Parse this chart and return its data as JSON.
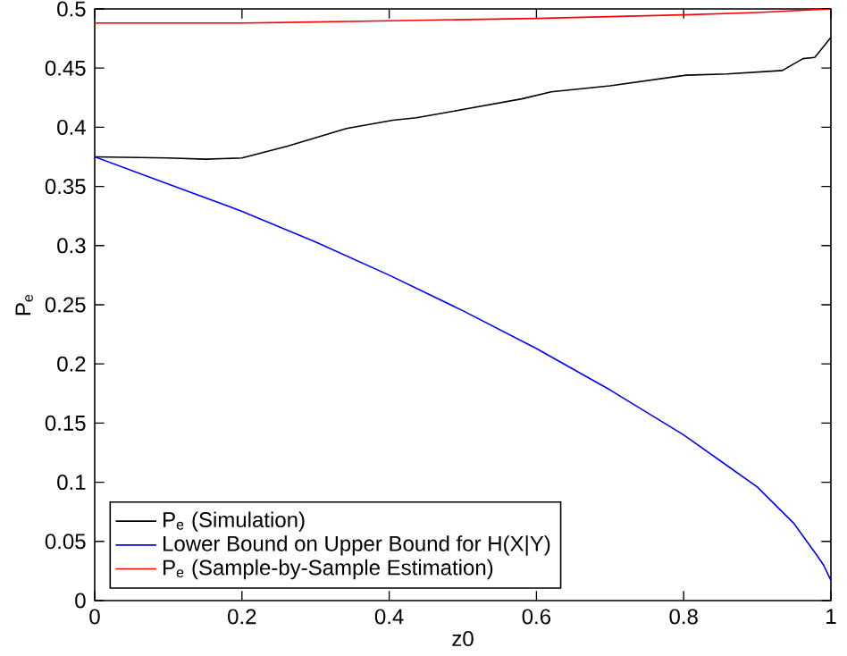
{
  "chart_data": {
    "type": "line",
    "xlabel": "z0",
    "ylabel": "P$_{e}$",
    "xlim": [
      0,
      1
    ],
    "ylim": [
      0,
      0.5
    ],
    "xticks": [
      0,
      0.2,
      0.4,
      0.6,
      0.8,
      1
    ],
    "yticks": [
      0,
      0.05,
      0.1,
      0.15,
      0.2,
      0.25,
      0.3,
      0.35,
      0.4,
      0.45,
      0.5
    ],
    "legend": "bottom left",
    "marker": "none",
    "line_style": "solid",
    "series": [
      {
        "name": "P$_{e}$ (Simulation)",
        "color": "#000000",
        "x": [
          0,
          0.1,
          0.15,
          0.2,
          0.262,
          0.342,
          0.405,
          0.437,
          0.5,
          0.58,
          0.62,
          0.7,
          0.803,
          0.859,
          0.934,
          0.962,
          0.978,
          0.986,
          1.0
        ],
        "values": [
          0.375,
          0.374,
          0.373,
          0.374,
          0.384,
          0.399,
          0.406,
          0.408,
          0.415,
          0.424,
          0.43,
          0.435,
          0.444,
          0.445,
          0.448,
          0.458,
          0.459,
          0.465,
          0.476
        ]
      },
      {
        "name": "Lower Bound on Upper Bound for H(X|Y)",
        "color": "#0000ff",
        "x": [
          0,
          0.1,
          0.2,
          0.3,
          0.4,
          0.5,
          0.6,
          0.7,
          0.8,
          0.85,
          0.9,
          0.95,
          0.98,
          0.99,
          1.0
        ],
        "values": [
          0.375,
          0.352,
          0.329,
          0.303,
          0.275,
          0.245,
          0.213,
          0.178,
          0.14,
          0.118,
          0.096,
          0.065,
          0.039,
          0.03,
          0.017
        ]
      },
      {
        "name": "P$_{e}$ (Sample-by-Sample Estimation)",
        "color": "#ff0000",
        "x": [
          0,
          0.2,
          0.4,
          0.6,
          0.8,
          0.9,
          1.0
        ],
        "values": [
          0.488,
          0.488,
          0.49,
          0.492,
          0.495,
          0.497,
          0.5
        ]
      }
    ]
  }
}
